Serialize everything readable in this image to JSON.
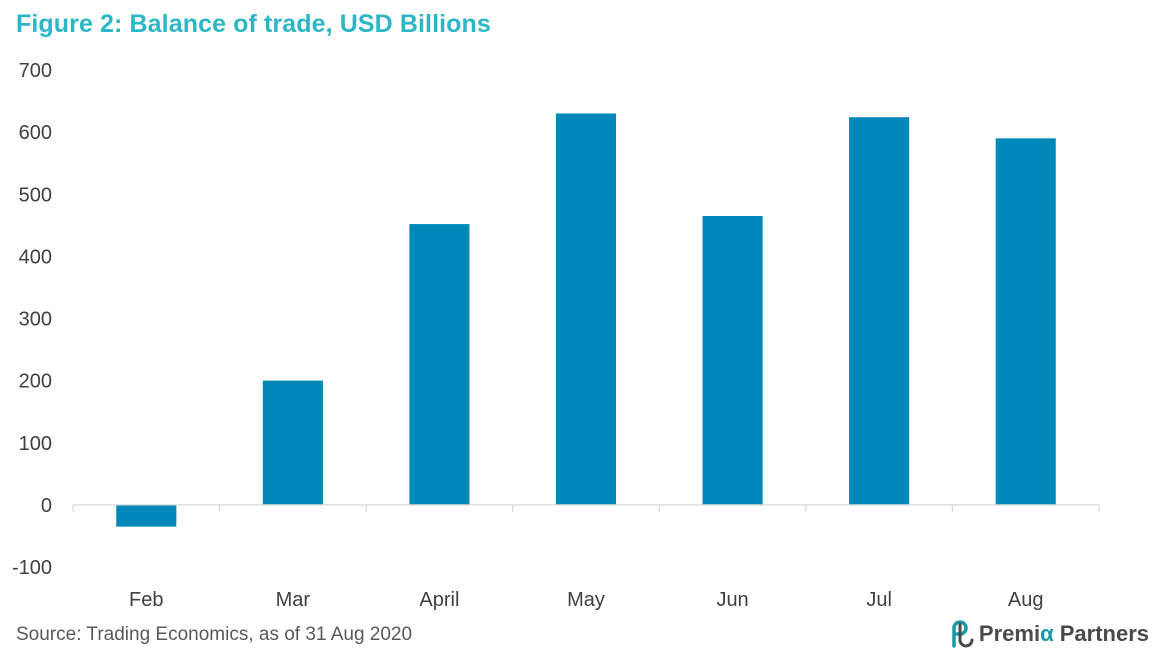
{
  "title": "Figure 2: Balance of trade, USD Billions",
  "source": "Source: Trading Economics, as of 31 Aug 2020",
  "logo": {
    "part1": "Premi",
    "part2": "α",
    "part3": "Partners",
    "icon": "premia-logo-icon"
  },
  "colors": {
    "bar": "#0088BA",
    "title": "#2BB7C6",
    "axis": "#D9D9D9"
  },
  "chart_data": {
    "type": "bar",
    "title": "Figure 2: Balance of trade, USD Billions",
    "categories": [
      "Feb",
      "Mar",
      "April",
      "May",
      "Jun",
      "Jul",
      "Aug"
    ],
    "values": [
      -35,
      200,
      452,
      630,
      465,
      624,
      590
    ],
    "ylim": [
      -100,
      700
    ],
    "yticks": [
      -100,
      0,
      100,
      200,
      300,
      400,
      500,
      600,
      700
    ],
    "xlabel": "",
    "ylabel": "",
    "grid": false,
    "legend": "none"
  }
}
